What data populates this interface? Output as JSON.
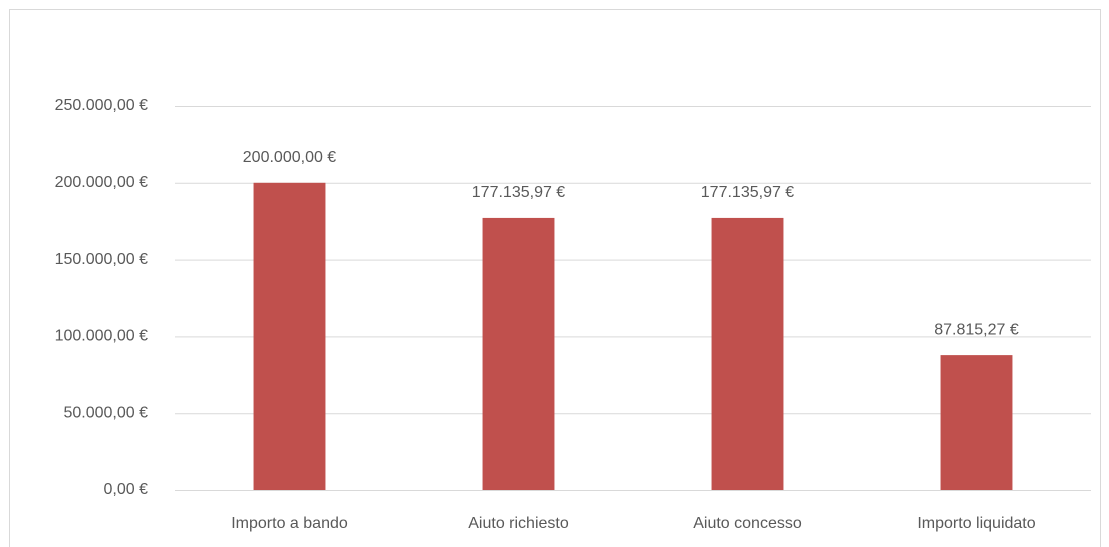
{
  "chart_data": {
    "type": "bar",
    "categories": [
      "Importo a bando",
      "Aiuto richiesto",
      "Aiuto concesso",
      "Importo liquidato"
    ],
    "values": [
      200000,
      177135.97,
      177135.97,
      87815.27
    ],
    "value_labels": [
      "200.000,00 €",
      "177.135,97 €",
      "177.135,97 €",
      "87.815,27 €"
    ],
    "color": "#c0504d",
    "ylim": [
      0,
      250000
    ],
    "yticks": [
      {
        "value": 0,
        "label": "0,00 €"
      },
      {
        "value": 50000,
        "label": "50.000,00 €"
      },
      {
        "value": 100000,
        "label": "100.000,00 €"
      },
      {
        "value": 150000,
        "label": "150.000,00 €"
      },
      {
        "value": 200000,
        "label": "200.000,00 €"
      },
      {
        "value": 250000,
        "label": "250.000,00 €"
      }
    ],
    "grid": true
  }
}
